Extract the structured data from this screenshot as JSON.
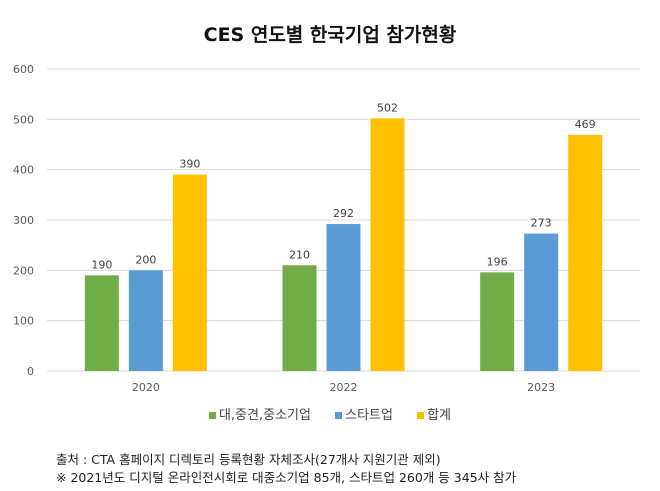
{
  "chart_data": {
    "type": "bar",
    "title": "CES 연도별 한국기업 참가현황",
    "categories": [
      "2020",
      "2022",
      "2023"
    ],
    "series": [
      {
        "name": "대,중견,중소기업",
        "color": "#70ad47",
        "values": [
          190,
          210,
          196
        ]
      },
      {
        "name": "스타트업",
        "color": "#5b9bd5",
        "values": [
          200,
          292,
          273
        ]
      },
      {
        "name": "합계",
        "color": "#ffc000",
        "values": [
          390,
          502,
          469
        ]
      }
    ],
    "ylim": [
      0,
      600
    ],
    "yticks": [
      "0",
      "100",
      "200",
      "300",
      "400",
      "500",
      "600"
    ],
    "grid": true,
    "legend": "bottom",
    "xlabel": "",
    "ylabel": ""
  },
  "notes": [
    "출처 : CTA 홈페이지 디렉토리 등록현황 자체조사(27개사 지원기관 제외)",
    "※ 2021년도 디지털 온라인전시회로 대중소기업 85개, 스타트업 260개 등 345사 참가"
  ]
}
